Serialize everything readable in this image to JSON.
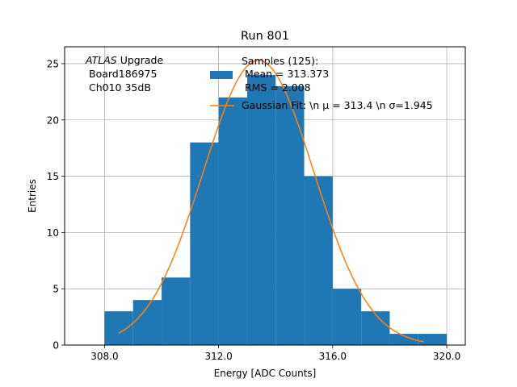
{
  "chart_data": {
    "type": "bar",
    "title": "Run 801",
    "xlabel": "Energy [ADC Counts]",
    "ylabel": "Entries",
    "xlim": [
      306.6,
      320.65
    ],
    "ylim": [
      0,
      26.5
    ],
    "xticks": [
      308.0,
      312.0,
      316.0,
      320.0
    ],
    "xtick_labels": [
      "308.0",
      "312.0",
      "316.0",
      "320.0"
    ],
    "yticks": [
      0,
      5,
      10,
      15,
      20,
      25
    ],
    "ytick_labels": [
      "0",
      "5",
      "10",
      "15",
      "20",
      "25"
    ],
    "grid": true,
    "histogram": {
      "name": "Samples (125):",
      "bins": [
        {
          "x0": 308,
          "x1": 309,
          "count": 3
        },
        {
          "x0": 309,
          "x1": 310,
          "count": 4
        },
        {
          "x0": 310,
          "x1": 311,
          "count": 6
        },
        {
          "x0": 311,
          "x1": 312,
          "count": 18
        },
        {
          "x0": 312,
          "x1": 313,
          "count": 22
        },
        {
          "x0": 313,
          "x1": 314,
          "count": 24
        },
        {
          "x0": 314,
          "x1": 315,
          "count": 23
        },
        {
          "x0": 315,
          "x1": 316,
          "count": 15
        },
        {
          "x0": 316,
          "x1": 317,
          "count": 5
        },
        {
          "x0": 317,
          "x1": 318,
          "count": 3
        },
        {
          "x0": 318,
          "x1": 319,
          "count": 1
        },
        {
          "x0": 319,
          "x1": 320,
          "count": 1
        }
      ],
      "color": "#1f77b4"
    },
    "fit": {
      "name": "Gaussian Fit: \\n μ = 313.4 \\n σ=1.945",
      "amplitude": 25.3,
      "mean": 313.4,
      "sigma": 1.945,
      "x_range": [
        308.5,
        319.2
      ],
      "color": "#ff7f0e"
    },
    "legend": {
      "placement": "top-center",
      "lines": [
        "Samples (125):",
        "Mean = 313.373",
        "RMS = 2.008",
        "Gaussian Fit: \\n μ = 313.4 \\n σ=1.945"
      ]
    },
    "annotation": {
      "placement": "top-left",
      "lines": [
        "ATLAS Upgrade",
        "Board186975",
        "Ch010 35dB"
      ]
    }
  }
}
